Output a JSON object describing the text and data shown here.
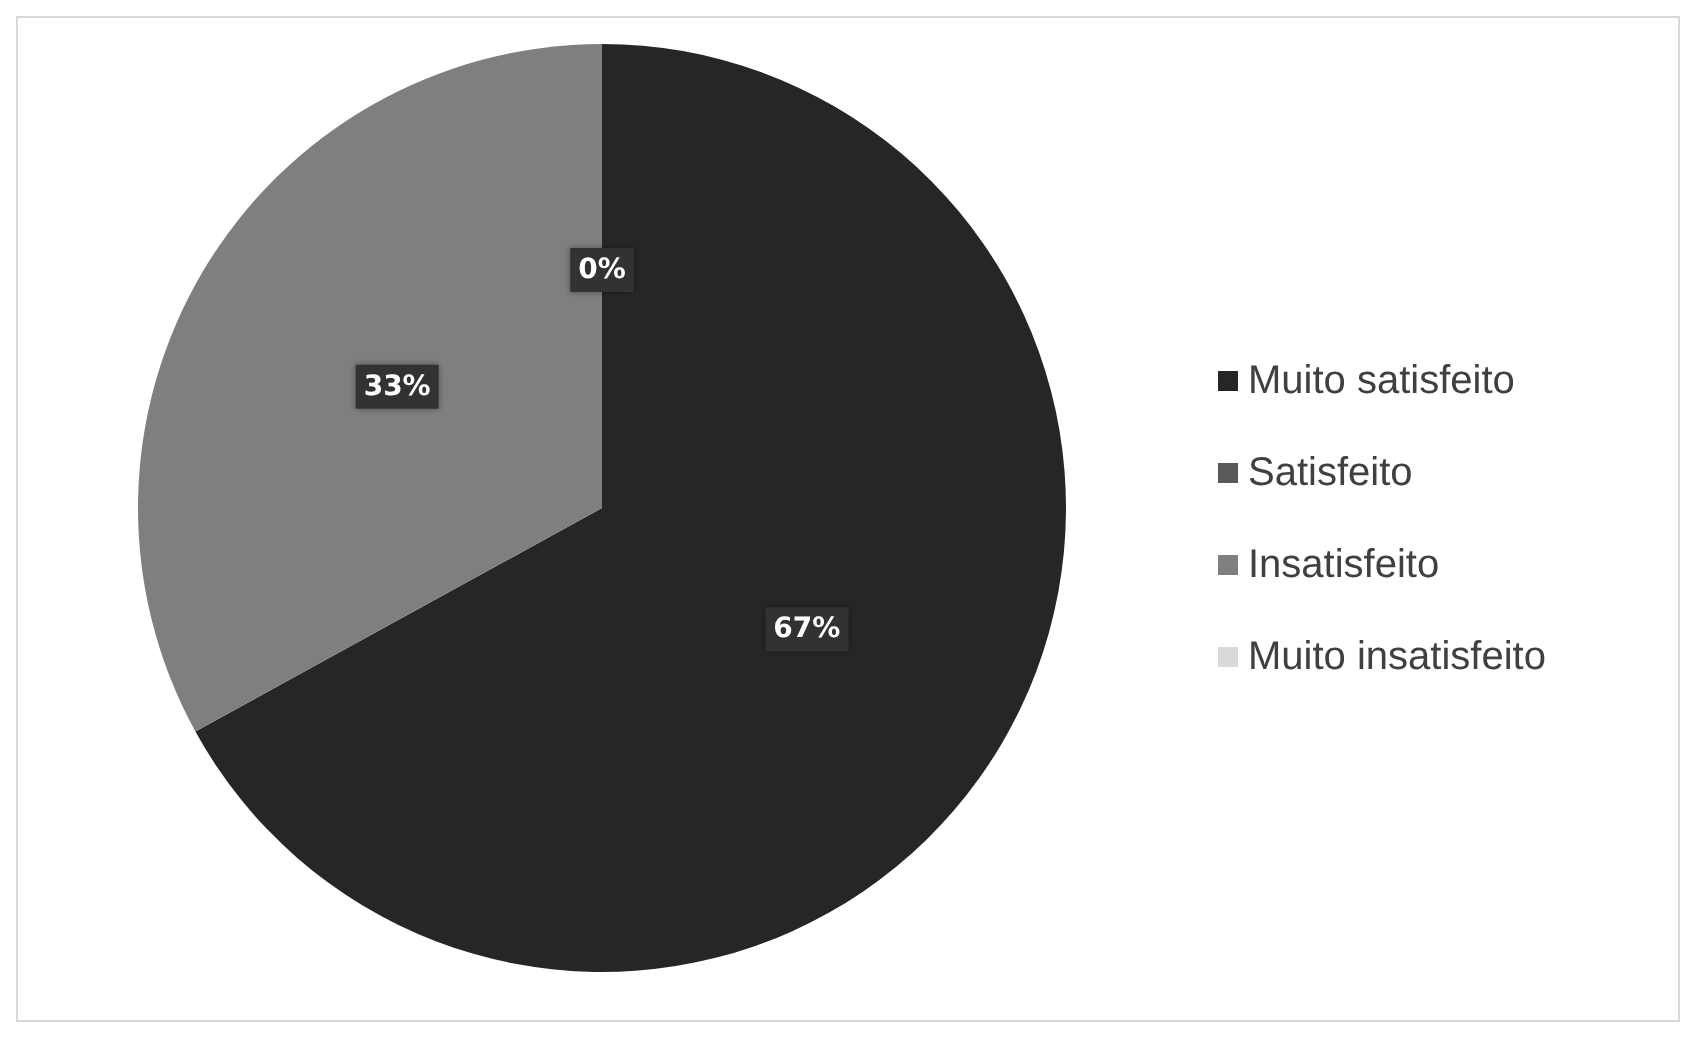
{
  "chart_data": {
    "type": "pie",
    "categories": [
      "Muito satisfeito",
      "Satisfeito",
      "Insatisfeito",
      "Muito insatisfeito"
    ],
    "values": [
      67,
      0,
      33,
      0
    ],
    "colors": [
      "#262626",
      "#595959",
      "#7f7f7f",
      "#d9d9d9"
    ],
    "value_labels": [
      "67%",
      null,
      "33%",
      "0%"
    ],
    "legend": "right"
  }
}
